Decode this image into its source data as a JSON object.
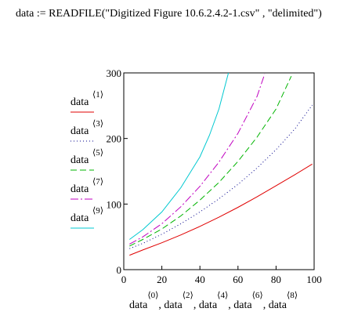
{
  "formula": "data := READFILE(\"Digitized Figure 10.6.2.4.2-1.csv\" , \"delimited\")",
  "chart_data": {
    "type": "line",
    "xlim": [
      0,
      100
    ],
    "ylim": [
      0,
      300
    ],
    "x_ticks": [
      "0",
      "20",
      "40",
      "60",
      "80",
      "100"
    ],
    "y_ticks": [
      "0",
      "100",
      "200",
      "300"
    ],
    "grid": false,
    "legend_position": "left",
    "xlabel_parts": [
      {
        "base": "data",
        "sup": "⟨0⟩",
        "sep": ", "
      },
      {
        "base": "data",
        "sup": "⟨2⟩",
        "sep": ", "
      },
      {
        "base": "data",
        "sup": "⟨4⟩",
        "sep": ", "
      },
      {
        "base": "data",
        "sup": "⟨6⟩",
        "sep": ", "
      },
      {
        "base": "data",
        "sup": "⟨8⟩",
        "sep": ""
      }
    ],
    "series": [
      {
        "name": "data",
        "name_sup": "⟨1⟩",
        "color": "#e00000",
        "dash": "",
        "x": [
          3,
          10,
          20,
          30,
          40,
          50,
          60,
          70,
          80,
          90,
          99
        ],
        "y": [
          22,
          30,
          41,
          53,
          66,
          80,
          95,
          111,
          128,
          145,
          161
        ]
      },
      {
        "name": "data",
        "name_sup": "⟨3⟩",
        "color": "#00008b",
        "dash": "1 3",
        "x": [
          3,
          10,
          20,
          30,
          40,
          50,
          60,
          70,
          80,
          90,
          99
        ],
        "y": [
          32,
          40,
          54,
          70,
          88,
          108,
          130,
          155,
          183,
          215,
          251
        ]
      },
      {
        "name": "data",
        "name_sup": "⟨5⟩",
        "color": "#00b400",
        "dash": "8 4",
        "x": [
          3,
          10,
          20,
          30,
          40,
          50,
          60,
          70,
          80,
          88
        ],
        "y": [
          36,
          46,
          62,
          82,
          106,
          133,
          165,
          202,
          245,
          295
        ]
      },
      {
        "name": "data",
        "name_sup": "⟨7⟩",
        "color": "#c000c0",
        "dash": "10 3 2 3",
        "x": [
          3,
          10,
          20,
          30,
          40,
          50,
          60,
          70,
          74
        ],
        "y": [
          39,
          50,
          70,
          96,
          127,
          164,
          208,
          264,
          298
        ]
      },
      {
        "name": "data",
        "name_sup": "⟨9⟩",
        "color": "#00c8d0",
        "dash": "",
        "x": [
          3,
          10,
          20,
          30,
          40,
          45,
          50,
          55
        ],
        "y": [
          46,
          61,
          88,
          125,
          172,
          205,
          245,
          300
        ]
      }
    ]
  }
}
